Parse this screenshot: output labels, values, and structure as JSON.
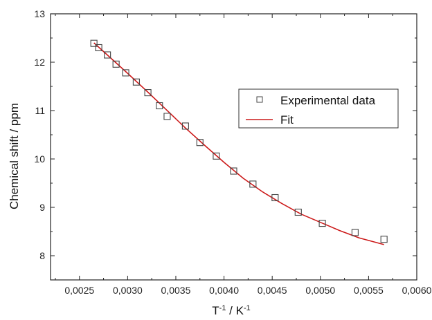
{
  "chart_data": {
    "type": "scatter",
    "xlabel": "T-1 / K-1",
    "xlabel_parts": {
      "base1": "T",
      "sup1": "-1",
      "mid": " / K",
      "sup2": "-1"
    },
    "ylabel": "Chemical shift / ppm",
    "xlim": [
      0.0022,
      0.006
    ],
    "ylim": [
      7.5,
      13
    ],
    "x_ticks": [
      0.0025,
      0.003,
      0.0035,
      0.004,
      0.0045,
      0.005,
      0.0055,
      0.006
    ],
    "x_tick_labels": [
      "0,0025",
      "0,0030",
      "0,0035",
      "0,0040",
      "0,0045",
      "0,0050",
      "0,0055",
      "0,0060"
    ],
    "y_ticks": [
      8,
      9,
      10,
      11,
      12,
      13
    ],
    "y_tick_labels": [
      "8",
      "9",
      "10",
      "11",
      "12",
      "13"
    ],
    "legend": {
      "position": "right",
      "entries": [
        {
          "label": "Experimental data",
          "marker": "square"
        },
        {
          "label": "Fit",
          "marker": "line"
        }
      ]
    },
    "series": [
      {
        "name": "Experimental data",
        "kind": "scatter",
        "marker": "square",
        "color": "#444444",
        "points": [
          [
            0.00265,
            12.39
          ],
          [
            0.0027,
            12.3
          ],
          [
            0.00279,
            12.15
          ],
          [
            0.00288,
            11.96
          ],
          [
            0.00298,
            11.78
          ],
          [
            0.00309,
            11.59
          ],
          [
            0.00321,
            11.37
          ],
          [
            0.00333,
            11.1
          ],
          [
            0.00341,
            10.88
          ],
          [
            0.0036,
            10.68
          ],
          [
            0.00375,
            10.34
          ],
          [
            0.00392,
            10.06
          ],
          [
            0.0041,
            9.75
          ],
          [
            0.0043,
            9.48
          ],
          [
            0.00453,
            9.2
          ],
          [
            0.00477,
            8.9
          ],
          [
            0.00502,
            8.67
          ],
          [
            0.00536,
            8.48
          ],
          [
            0.00566,
            8.34
          ]
        ]
      },
      {
        "name": "Fit",
        "kind": "line",
        "color": "#cc1a1a",
        "points": [
          [
            0.00265,
            12.4
          ],
          [
            0.0028,
            12.13
          ],
          [
            0.003,
            11.77
          ],
          [
            0.0032,
            11.4
          ],
          [
            0.0034,
            11.02
          ],
          [
            0.0036,
            10.64
          ],
          [
            0.0038,
            10.28
          ],
          [
            0.004,
            9.93
          ],
          [
            0.0042,
            9.6
          ],
          [
            0.0044,
            9.32
          ],
          [
            0.0046,
            9.08
          ],
          [
            0.0048,
            8.86
          ],
          [
            0.005,
            8.69
          ],
          [
            0.0052,
            8.52
          ],
          [
            0.0054,
            8.37
          ],
          [
            0.00566,
            8.23
          ]
        ]
      }
    ]
  }
}
